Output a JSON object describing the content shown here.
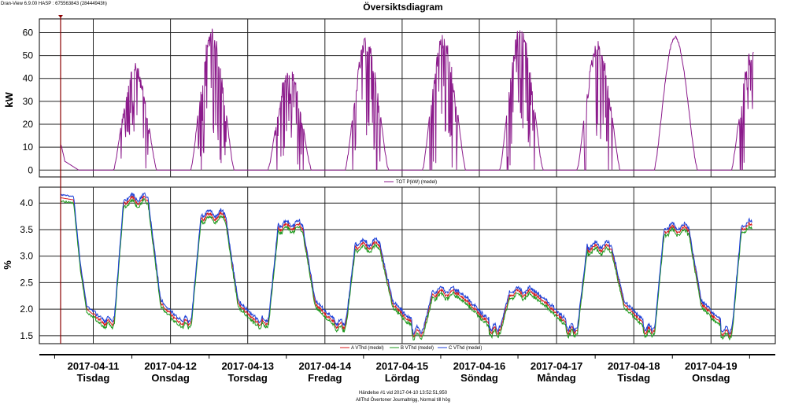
{
  "header": {
    "app_info": "Dran-View 6.9.00 HASP : 675563843 (28444943h)",
    "title": "Översiktsdiagram"
  },
  "footer": {
    "event_line1": "Händelse #1 vid 2017-04-10 13:52:51,950",
    "event_line2": "AllThd Övertoner Journaltrigg, Normal till hög"
  },
  "colors": {
    "power": "#8b1a8b",
    "phase_a": "#d81b1b",
    "phase_b": "#1e9a1e",
    "phase_c": "#1c3fd8",
    "grid": "#222222",
    "marker": "#8b0000"
  },
  "chart_data": [
    {
      "type": "line",
      "ylabel": "kW",
      "ylim": [
        -3,
        66
      ],
      "yticks": [
        0,
        10,
        20,
        30,
        40,
        50,
        60
      ],
      "grid": true,
      "legend_position": "bottom-center",
      "series": [
        {
          "name": "TOT P(kW) (medel)",
          "daily_peak_kw": [
            47,
            62,
            45,
            58,
            60,
            63,
            57,
            58,
            53
          ],
          "first_day_level_kw": 11,
          "spiky_days": [
            true,
            true,
            true,
            true,
            true,
            true,
            true,
            false,
            true
          ]
        }
      ]
    },
    {
      "type": "line",
      "ylabel": "%",
      "ylim": [
        1.35,
        4.3
      ],
      "yticks": [
        1.5,
        2.0,
        2.5,
        3.0,
        3.5,
        4.0
      ],
      "grid": true,
      "legend_position": "bottom-center",
      "series": [
        {
          "name": "A VThd (medel)",
          "offset": 0.0
        },
        {
          "name": "B VThd (medel)",
          "offset": -0.06
        },
        {
          "name": "C VThd (medel)",
          "offset": 0.06
        }
      ],
      "daily_high_pct": [
        4.05,
        3.75,
        3.55,
        3.2,
        2.3,
        2.3,
        3.15,
        3.5,
        3.55
      ],
      "night_low_pct": [
        1.75,
        1.75,
        1.75,
        1.7,
        1.55,
        1.6,
        1.6,
        1.6,
        1.55
      ],
      "start_value_pct": 4.1
    }
  ],
  "x_axis": {
    "dates": [
      "2017-04-11",
      "2017-04-12",
      "2017-04-13",
      "2017-04-14",
      "2017-04-15",
      "2017-04-16",
      "2017-04-17",
      "2017-04-18",
      "2017-04-19"
    ],
    "days": [
      "Tisdag",
      "Onsdag",
      "Torsdag",
      "Fredag",
      "Lördag",
      "Söndag",
      "Måndag",
      "Tisdag",
      "Onsdag"
    ],
    "start": "2017-04-10 13:52",
    "end": "2017-04-20 00:00"
  }
}
